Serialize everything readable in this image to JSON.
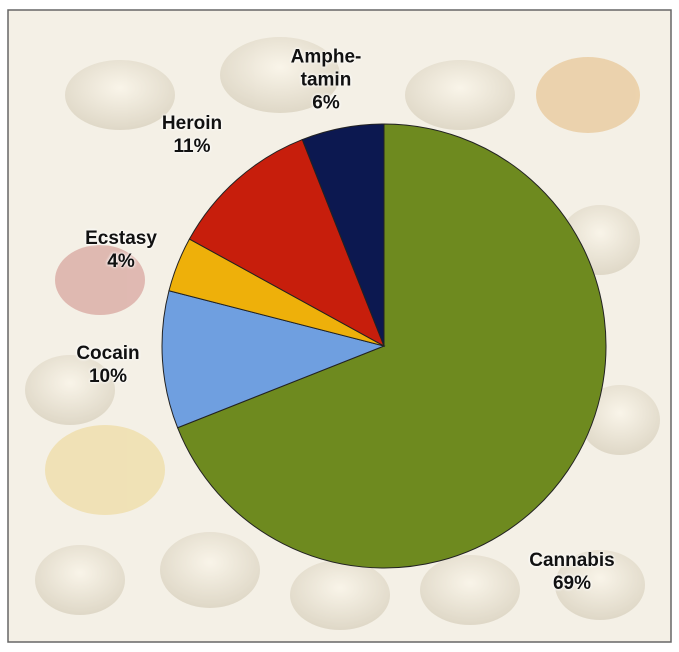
{
  "chart_data": {
    "type": "pie",
    "categories": [
      "Cannabis",
      "Cocain",
      "Ecstasy",
      "Heroin",
      "Amphe-\ntamin"
    ],
    "values": [
      69,
      10,
      4,
      11,
      6
    ],
    "value_labels": [
      "69%",
      "10%",
      "4%",
      "11%",
      "6%"
    ],
    "colors": [
      "#6e8a1f",
      "#6f9fe0",
      "#eeb00a",
      "#c71e0c",
      "#0c1850"
    ]
  }
}
